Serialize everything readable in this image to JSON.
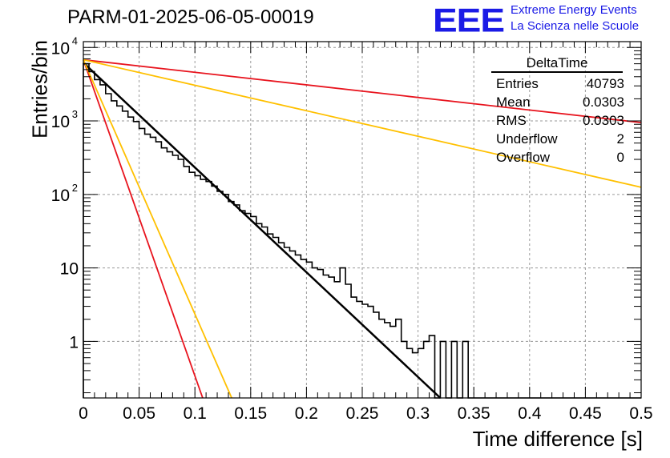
{
  "header": {
    "run_title": "PARM-01-2025-06-05-00019",
    "logo": "EEE",
    "logo_line1": "Extreme Energy Events",
    "logo_line2": "La Scienza nelle Scuole"
  },
  "stats": {
    "name": "DeltaTime",
    "rows": [
      {
        "label": "Entries",
        "value": "40793"
      },
      {
        "label": "Mean",
        "value": "0.0303"
      },
      {
        "label": "RMS",
        "value": "0.0303"
      },
      {
        "label": "Underflow",
        "value": "2"
      },
      {
        "label": "Overflow",
        "value": "0"
      }
    ]
  },
  "chart_data": {
    "type": "line",
    "xlabel": "Time difference [s]",
    "ylabel": "Entries/bin",
    "xlim": [
      0,
      0.5
    ],
    "ylim": [
      0.17,
      12000
    ],
    "yscale": "log",
    "grid": true,
    "x_ticks": [
      "0",
      "0.05",
      "0.1",
      "0.15",
      "0.2",
      "0.25",
      "0.3",
      "0.35",
      "0.4",
      "0.45",
      "0.5"
    ],
    "y_ticks": [
      {
        "value": 1,
        "label": "1"
      },
      {
        "value": 10,
        "label": "10"
      },
      {
        "value": 100,
        "label": "10",
        "exp": "2"
      },
      {
        "value": 1000,
        "label": "10",
        "exp": "3"
      },
      {
        "value": 10000,
        "label": "10",
        "exp": "4"
      }
    ],
    "histogram": {
      "bin_width": 0.005,
      "values": [
        6000,
        4700,
        3650,
        3100,
        2350,
        1880,
        1600,
        1360,
        1130,
        980,
        790,
        660,
        600,
        520,
        430,
        380,
        340,
        300,
        240,
        200,
        180,
        160,
        150,
        130,
        110,
        100,
        80,
        72,
        60,
        55,
        50,
        40,
        36,
        29,
        26,
        22,
        19,
        17,
        15,
        13,
        12,
        10,
        9.5,
        8,
        7.5,
        6.5,
        10,
        6,
        4,
        3.5,
        3.2,
        3,
        2.5,
        2,
        1.8,
        1.6,
        2,
        1,
        0.8,
        0.7,
        0.8,
        1,
        1.2,
        0.15,
        1,
        0.15,
        1,
        0.15,
        1,
        0.15,
        0.15,
        0.15,
        0.15,
        0.15,
        0.15,
        0.15,
        0.15,
        0.15,
        0.15,
        0.15,
        0.15,
        0.15,
        0.15,
        0.15,
        0.15,
        0.15,
        0.15,
        0.15,
        0.15,
        0.15,
        0.15,
        0.15,
        0.15,
        0.15,
        0.15,
        0.15,
        0.15,
        0.15,
        0.15,
        0.15
      ],
      "color": "#000000"
    },
    "series": [
      {
        "x": [
          0,
          0.32
        ],
        "y": [
          6200,
          0.17
        ],
        "color": "#000000",
        "width": 2.5
      },
      {
        "x": [
          0,
          0.5
        ],
        "y": [
          6800,
          950
        ],
        "color": "#e8141e",
        "width": 1.8
      },
      {
        "x": [
          0,
          0.5
        ],
        "y": [
          6800,
          125
        ],
        "color": "#ffc000",
        "width": 1.8
      },
      {
        "x": [
          0,
          0.107
        ],
        "y": [
          6800,
          0.17
        ],
        "color": "#e8141e",
        "width": 1.8
      },
      {
        "x": [
          0,
          0.133
        ],
        "y": [
          6800,
          0.17
        ],
        "color": "#ffc000",
        "width": 1.8
      }
    ]
  }
}
